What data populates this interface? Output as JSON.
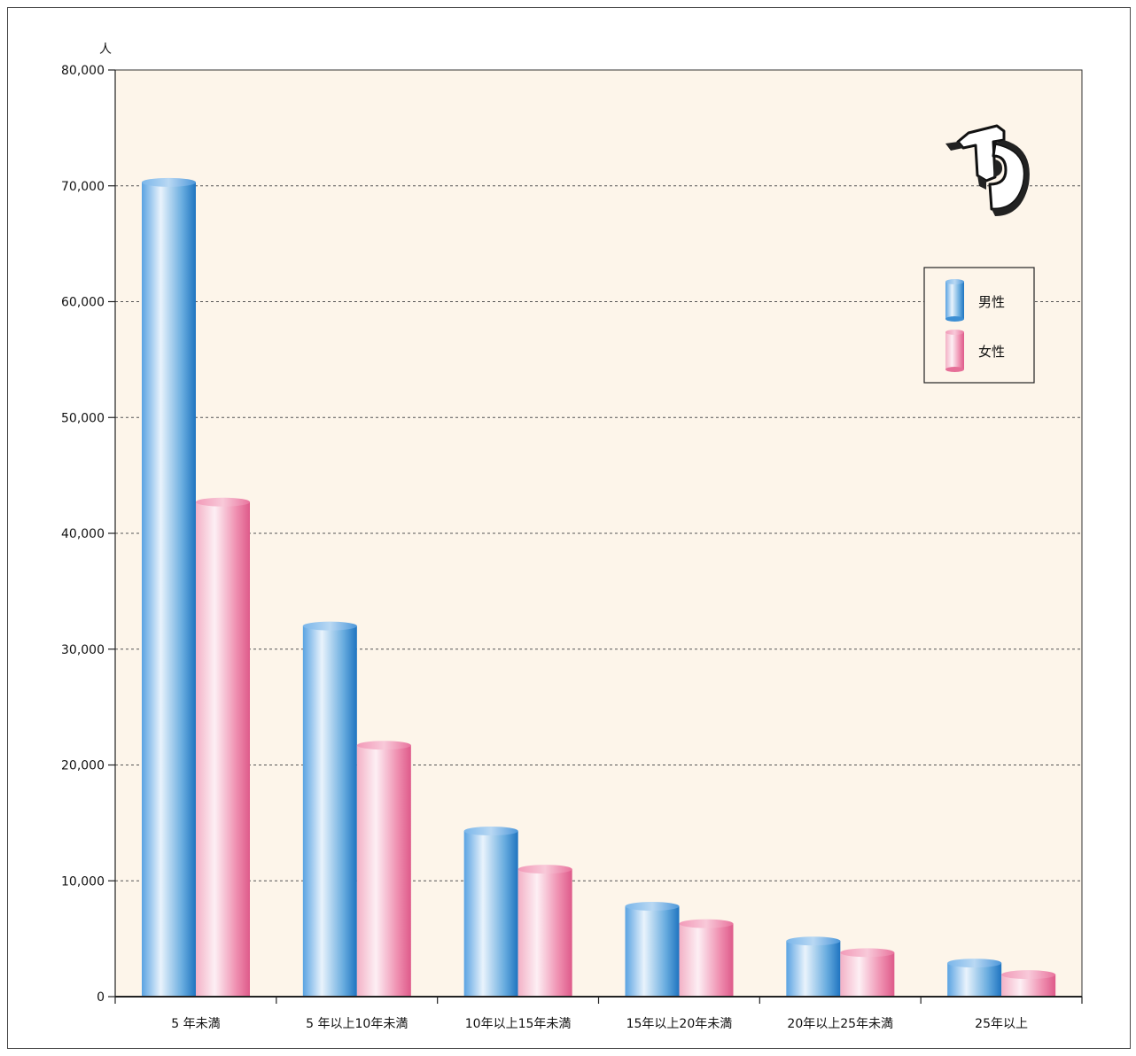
{
  "chart_data": {
    "type": "bar",
    "y_unit_label": "人",
    "categories": [
      "5 年未満",
      "5 年以上10年未満",
      "10年以上15年未満",
      "15年以上20年未満",
      "20年以上25年未満",
      "25年以上"
    ],
    "series": [
      {
        "name": "男性",
        "color": "#2f86d0",
        "values": [
          70300,
          32000,
          14300,
          7800,
          4800,
          2900
        ]
      },
      {
        "name": "女性",
        "color": "#e8709a",
        "values": [
          42700,
          21700,
          11000,
          6300,
          3800,
          1900
        ]
      }
    ],
    "y_ticks": [
      "0",
      "10,000",
      "20,000",
      "30,000",
      "40,000",
      "50,000",
      "60,000",
      "70,000",
      "80,000"
    ],
    "ylim": [
      0,
      80000
    ],
    "grid": true,
    "grid_style": "dashed",
    "legend_position": "top-right",
    "plot_background": "#fdf5ea",
    "logo": "TD"
  }
}
